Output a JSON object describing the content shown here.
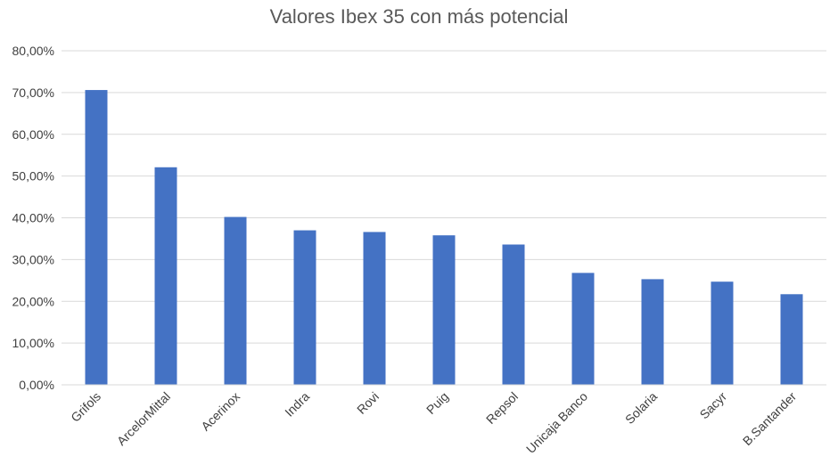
{
  "chart_data": {
    "type": "bar",
    "title": "Valores Ibex 35 con más potencial",
    "xlabel": "",
    "ylabel": "",
    "categories": [
      "Grifols",
      "ArcelorMittal",
      "Acerinox",
      "Indra",
      "Rovi",
      "Puig",
      "Repsol",
      "Unicaja Banco",
      "Solaria",
      "Sacyr",
      "B.Santander"
    ],
    "values": [
      70.6,
      52.1,
      40.2,
      37.0,
      36.6,
      35.8,
      33.6,
      26.8,
      25.3,
      24.7,
      21.7
    ],
    "ylim": [
      0,
      80
    ],
    "yticks": [
      "0,00%",
      "10,00%",
      "20,00%",
      "30,00%",
      "40,00%",
      "50,00%",
      "60,00%",
      "70,00%",
      "80,00%"
    ],
    "grid": true,
    "legend": "none",
    "bar_color": "#4472C4",
    "grid_color": "#D9D9D9"
  }
}
